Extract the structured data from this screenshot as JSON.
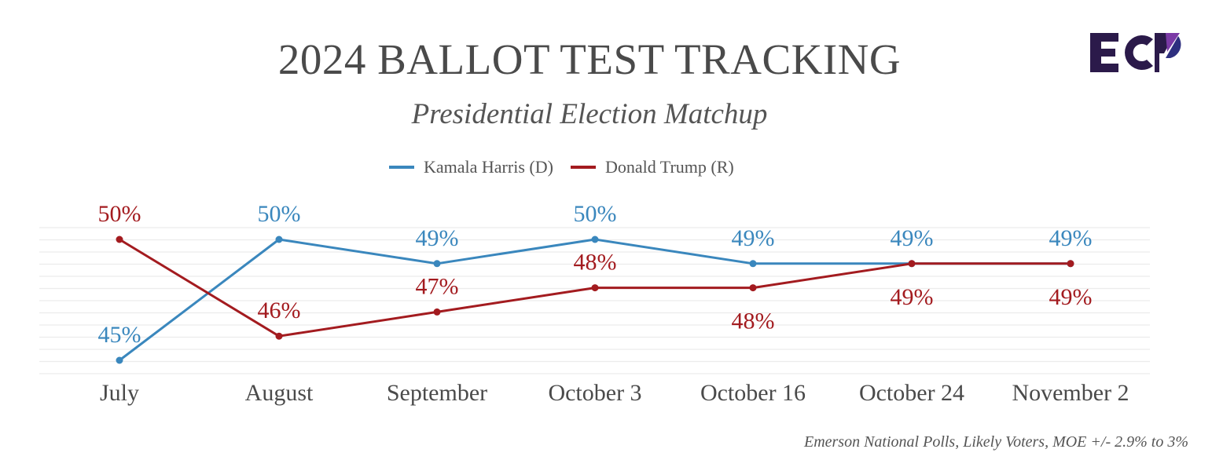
{
  "header": {
    "title": "2024 BALLOT TEST TRACKING",
    "subtitle": "Presidential Election Matchup",
    "logo": {
      "text": "ECP",
      "icon": "ecp-logo-icon",
      "colors": {
        "dark": "#2b1a4a",
        "purple": "#7b3aa6",
        "navy": "#2e2f7f"
      }
    }
  },
  "footer": {
    "source": "Emerson National Polls, Likely Voters, MOE +/- 2.9% to 3%"
  },
  "chart_data": {
    "type": "line",
    "title": "2024 BALLOT TEST TRACKING",
    "subtitle": "Presidential Election Matchup",
    "xlabel": "",
    "ylabel": "",
    "categories": [
      "July",
      "August",
      "September",
      "October 3",
      "October 16",
      "October 24",
      "November 2"
    ],
    "ylim": [
      44.5,
      50.5
    ],
    "grid": true,
    "legend_position": "top-center",
    "series": [
      {
        "name": "Kamala Harris (D)",
        "color": "#3a87bd",
        "values": [
          45,
          50,
          49,
          50,
          49,
          49,
          49
        ],
        "labels": [
          "45%",
          "50%",
          "49%",
          "50%",
          "49%",
          "49%",
          "49%"
        ],
        "label_side": [
          "above",
          "above",
          "above",
          "above",
          "above",
          "above",
          "above"
        ]
      },
      {
        "name": "Donald Trump (R)",
        "color": "#a31b1f",
        "values": [
          50,
          46,
          47,
          48,
          48,
          49,
          49
        ],
        "labels": [
          "50%",
          "46%",
          "47%",
          "48%",
          "48%",
          "49%",
          "49%"
        ],
        "label_side": [
          "above",
          "above",
          "above",
          "above",
          "below",
          "below",
          "below"
        ]
      }
    ],
    "annotation": "Emerson National Polls, Likely Voters, MOE +/- 2.9% to 3%"
  }
}
